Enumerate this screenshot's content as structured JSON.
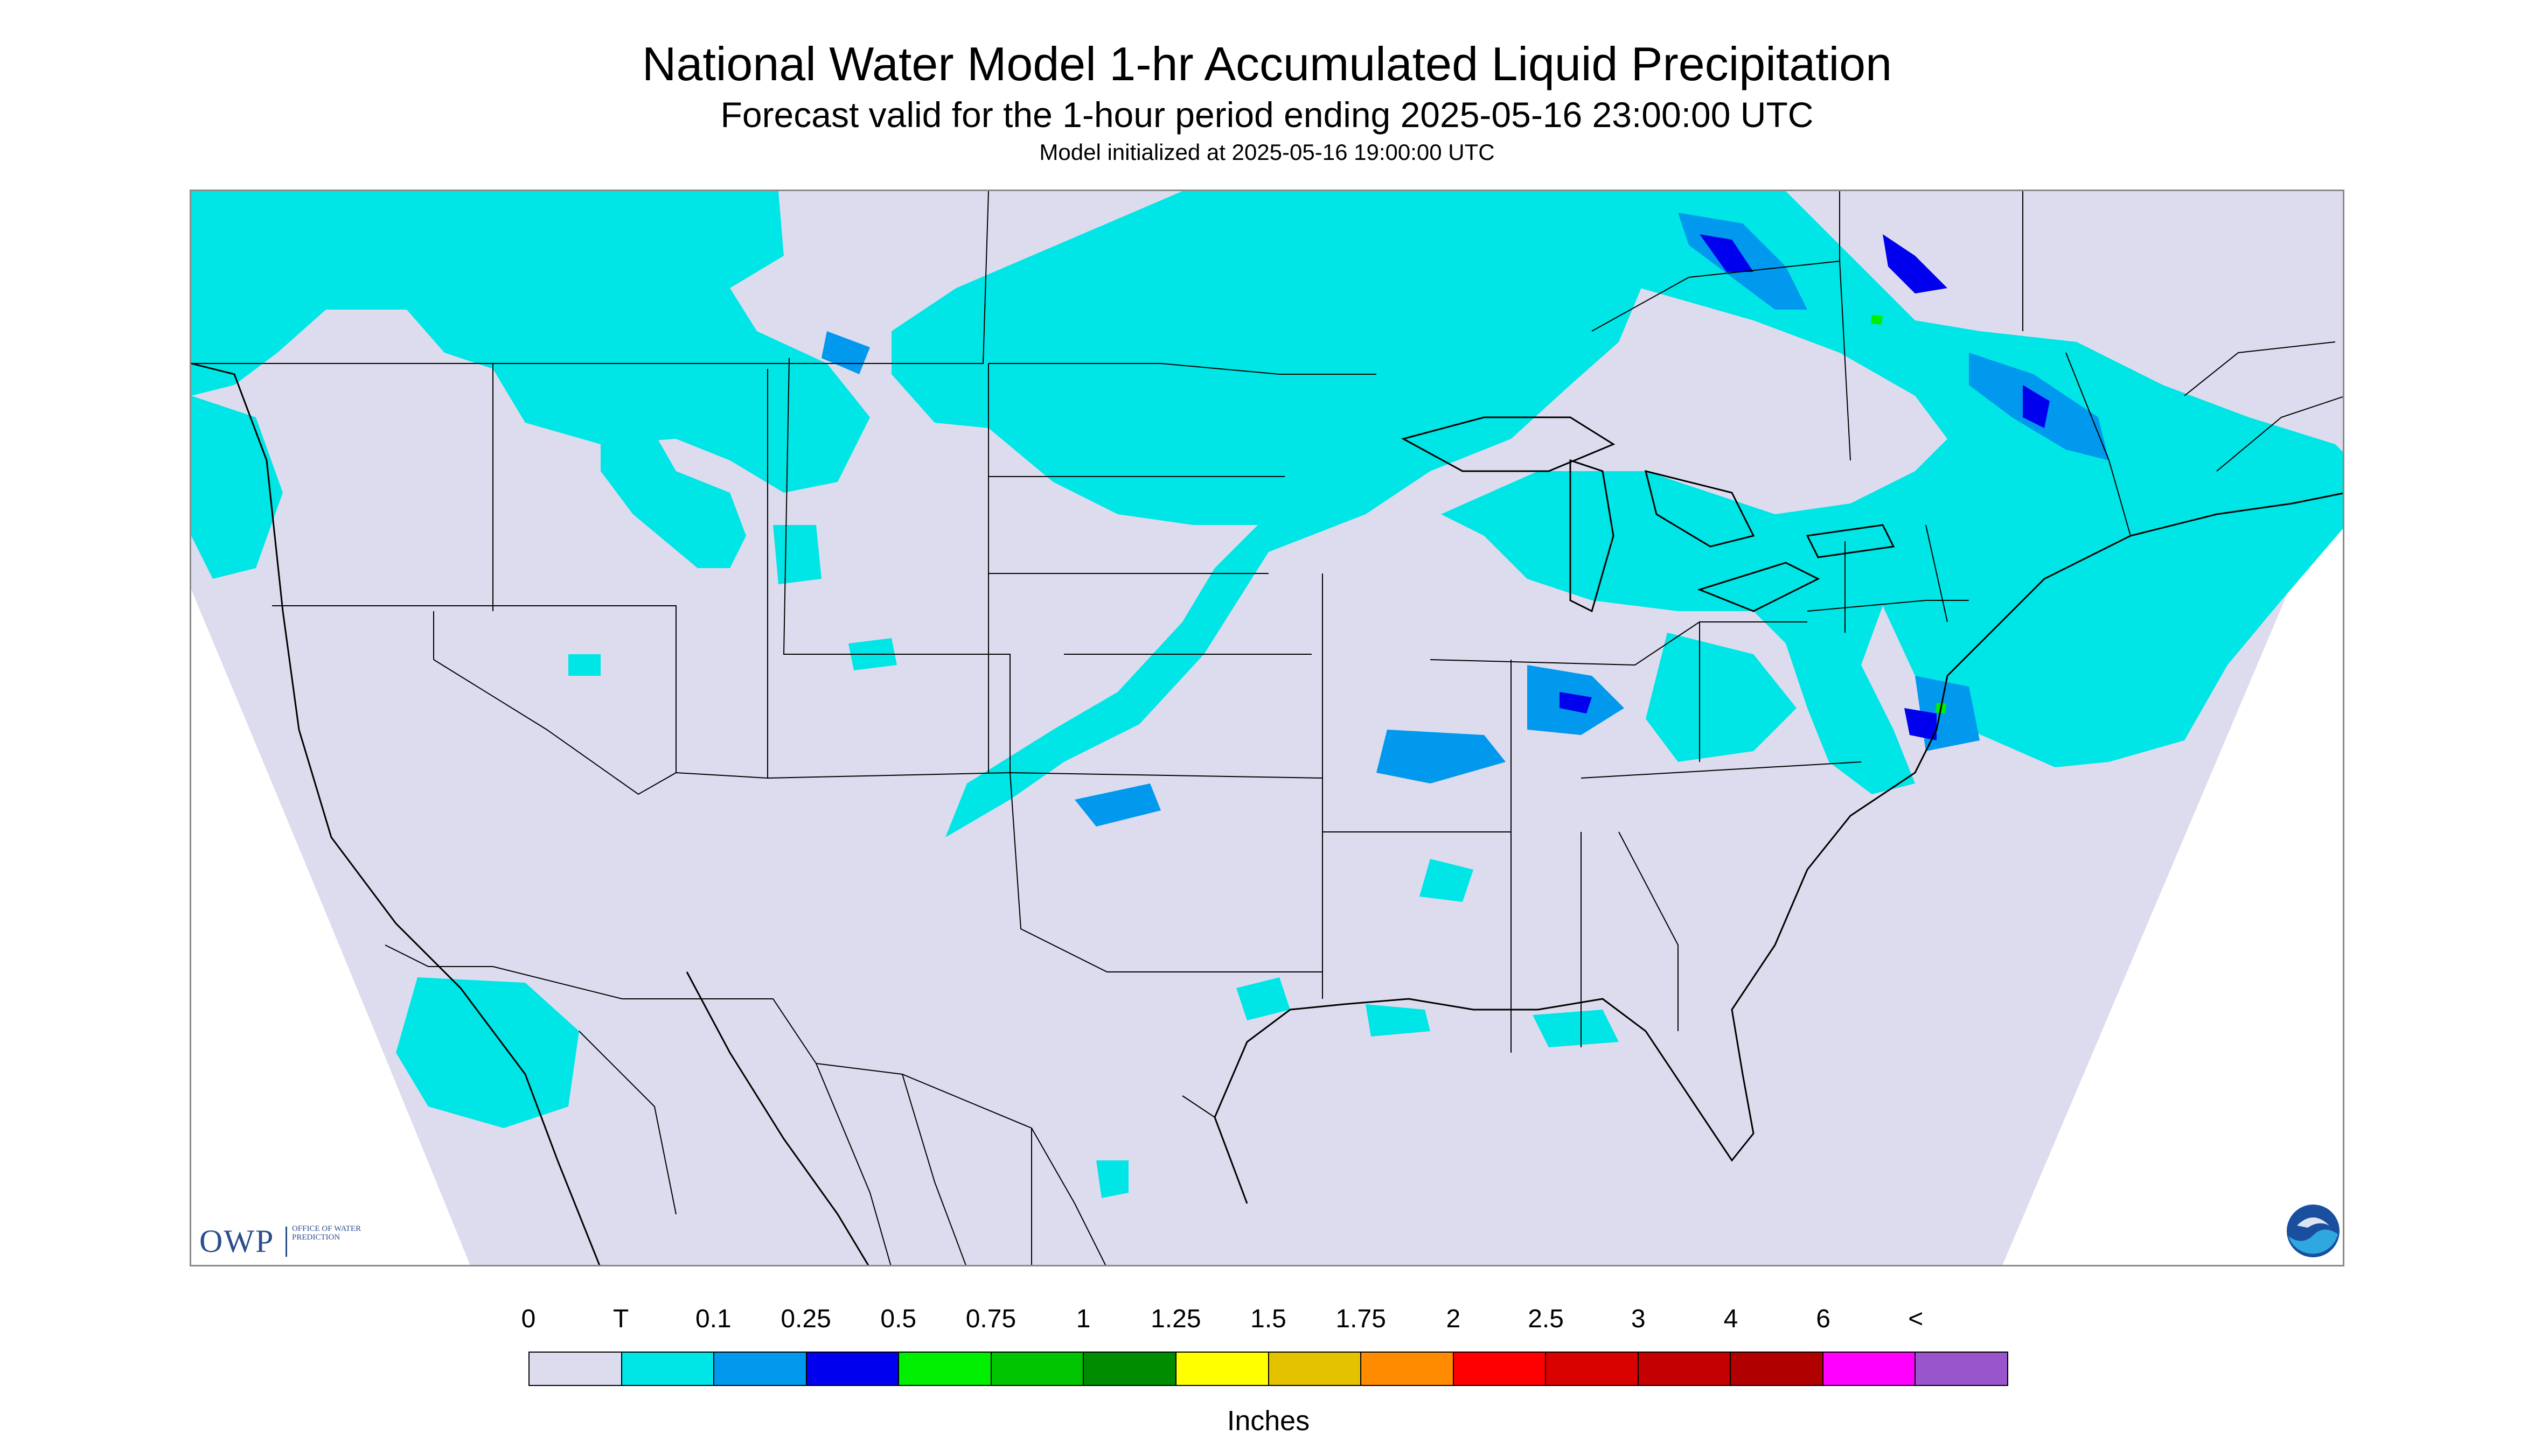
{
  "header": {
    "title": "National Water Model 1-hr Accumulated Liquid Precipitation",
    "subtitle": "Forecast valid for the 1-hour period ending 2025-05-16 23:00:00 UTC",
    "initialized": "Model initialized at 2025-05-16 19:00:00 UTC"
  },
  "map": {
    "region": "Contiguous United States",
    "background_color": "#dcdcee",
    "outside_domain_color": "#ffffff",
    "boundary_color": "#000000"
  },
  "logos": {
    "owp_mark": "OWP",
    "owp_text": "Office of Water Prediction",
    "noaa_icon": "noaa-logo-icon"
  },
  "legend": {
    "units": "Inches",
    "labels": [
      "0",
      "T",
      "0.1",
      "0.25",
      "0.5",
      "0.75",
      "1",
      "1.25",
      "1.5",
      "1.75",
      "2",
      "2.5",
      "3",
      "4",
      "6",
      "<"
    ],
    "colors": [
      "#dcdcee",
      "#00e5e5",
      "#0099ee",
      "#0000ee",
      "#00ee00",
      "#00c400",
      "#008c00",
      "#ffff00",
      "#e5c200",
      "#ff8c00",
      "#ff0000",
      "#d90000",
      "#c40000",
      "#b00000",
      "#ff00ff",
      "#9955cc"
    ]
  }
}
